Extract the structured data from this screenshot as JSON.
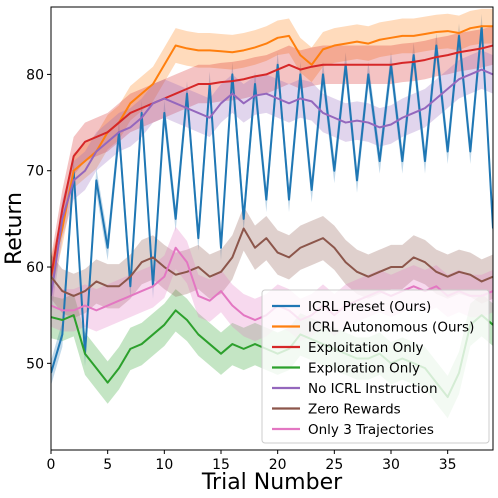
{
  "chart_data": {
    "type": "line",
    "title": "",
    "xlabel": "Trial Number",
    "ylabel": "Return",
    "xlim": [
      0,
      39
    ],
    "ylim": [
      41,
      87
    ],
    "xticks": [
      0,
      5,
      10,
      15,
      20,
      25,
      30,
      35
    ],
    "yticks": [
      50,
      60,
      70,
      80
    ],
    "grid": false,
    "legend_position": "bottom-right",
    "series": [
      {
        "name": "ICRL Preset (Ours)",
        "color": "#1f77b4",
        "band": 1.3,
        "x": [
          0,
          1,
          2,
          3,
          4,
          5,
          6,
          7,
          8,
          9,
          10,
          11,
          12,
          13,
          14,
          15,
          16,
          17,
          18,
          19,
          20,
          21,
          22,
          23,
          24,
          25,
          26,
          27,
          28,
          29,
          30,
          31,
          32,
          33,
          34,
          35,
          36,
          37,
          38,
          39
        ],
        "values": [
          49,
          53,
          70,
          51,
          69,
          62,
          74,
          58,
          76,
          58,
          76,
          65,
          78,
          63,
          79,
          62,
          80,
          65,
          79,
          67,
          81,
          67,
          80,
          68,
          80,
          70,
          81,
          69,
          80,
          71,
          81,
          71,
          82,
          71,
          83,
          72,
          84,
          72,
          85,
          64
        ]
      },
      {
        "name": "ICRL Autonomous (Ours)",
        "color": "#ff7f0e",
        "band": 1.8,
        "x": [
          0,
          1,
          2,
          3,
          4,
          5,
          6,
          7,
          8,
          9,
          10,
          11,
          12,
          13,
          14,
          15,
          16,
          17,
          18,
          19,
          20,
          21,
          22,
          23,
          24,
          25,
          26,
          27,
          28,
          29,
          30,
          31,
          32,
          33,
          34,
          35,
          36,
          37,
          38,
          39
        ],
        "values": [
          59,
          64,
          70,
          71,
          72,
          74,
          75,
          77,
          78,
          79,
          81,
          83,
          82.7,
          82.5,
          82.5,
          82.4,
          82.3,
          82.5,
          82.8,
          83.2,
          83.8,
          84,
          82,
          81,
          82.6,
          83,
          83.2,
          83.4,
          83.2,
          83.6,
          83.8,
          84,
          84,
          84.2,
          84.4,
          84.5,
          84.3,
          84.8,
          85,
          85
        ]
      },
      {
        "name": "Exploitation Only",
        "color": "#d62728",
        "band": 2.0,
        "x": [
          0,
          1,
          2,
          3,
          4,
          5,
          6,
          7,
          8,
          9,
          10,
          11,
          12,
          13,
          14,
          15,
          16,
          17,
          18,
          19,
          20,
          21,
          22,
          23,
          24,
          25,
          26,
          27,
          28,
          29,
          30,
          31,
          32,
          33,
          34,
          35,
          36,
          37,
          38,
          39
        ],
        "values": [
          59,
          66,
          71.5,
          73,
          73.5,
          74,
          75,
          76,
          76.5,
          77,
          77.5,
          78,
          78.5,
          79,
          79,
          79.2,
          79.3,
          79.5,
          79.8,
          80,
          80.5,
          81,
          80.5,
          80.8,
          81,
          81,
          81,
          81,
          81,
          81,
          81,
          81.2,
          81.3,
          81.5,
          81.8,
          82,
          82.3,
          82.5,
          82.7,
          83
        ]
      },
      {
        "name": "Exploration Only",
        "color": "#2ca02c",
        "band": 2.2,
        "x": [
          0,
          1,
          2,
          3,
          4,
          5,
          6,
          7,
          8,
          9,
          10,
          11,
          12,
          13,
          14,
          15,
          16,
          17,
          18,
          19,
          20,
          21,
          22,
          23,
          24,
          25,
          26,
          27,
          28,
          29,
          30,
          31,
          32,
          33,
          34,
          35,
          36,
          37,
          38,
          39
        ],
        "values": [
          54.8,
          54.5,
          55,
          51,
          49.5,
          48,
          49.5,
          51.5,
          52,
          53,
          54,
          55.5,
          54.5,
          53,
          52,
          51,
          52,
          51.5,
          52,
          51.5,
          51,
          51.5,
          53,
          52.5,
          52,
          51.5,
          51,
          50.5,
          50.5,
          51,
          50,
          50.5,
          50,
          49.5,
          48,
          46.5,
          49,
          54,
          55,
          54
        ]
      },
      {
        "name": "No ICRL Instruction",
        "color": "#9467bd",
        "band": 2.0,
        "x": [
          0,
          1,
          2,
          3,
          4,
          5,
          6,
          7,
          8,
          9,
          10,
          11,
          12,
          13,
          14,
          15,
          16,
          17,
          18,
          19,
          20,
          21,
          22,
          23,
          24,
          25,
          26,
          27,
          28,
          29,
          30,
          31,
          32,
          33,
          34,
          35,
          36,
          37,
          38,
          39
        ],
        "values": [
          57,
          65,
          69,
          70,
          72,
          73,
          74,
          74.5,
          75.5,
          77,
          77.5,
          77,
          76.5,
          76,
          75.5,
          77,
          78,
          77,
          77.8,
          78,
          77.5,
          77,
          77.5,
          77.2,
          76,
          75.5,
          75,
          75.2,
          75,
          74.5,
          74.8,
          75.5,
          76,
          76.5,
          77.5,
          78.5,
          79.5,
          80,
          80.5,
          80
        ]
      },
      {
        "name": "Zero Rewards",
        "color": "#8c564b",
        "band": 2.3,
        "x": [
          0,
          1,
          2,
          3,
          4,
          5,
          6,
          7,
          8,
          9,
          10,
          11,
          12,
          13,
          14,
          15,
          16,
          17,
          18,
          19,
          20,
          21,
          22,
          23,
          24,
          25,
          26,
          27,
          28,
          29,
          30,
          31,
          32,
          33,
          34,
          35,
          36,
          37,
          38,
          39
        ],
        "values": [
          59,
          57.5,
          57,
          57.5,
          58.5,
          58,
          58,
          59,
          60.5,
          61,
          60,
          59.2,
          59.5,
          60,
          59,
          59.5,
          61,
          64,
          62,
          63,
          61.5,
          61,
          62,
          62.5,
          63,
          62,
          60.5,
          59.5,
          59,
          59.5,
          60,
          60,
          61,
          60.5,
          59.5,
          59,
          59.5,
          59.2,
          58.5,
          59
        ]
      },
      {
        "name": "Only 3 Trajectories",
        "color": "#e377c2",
        "band": 2.2,
        "x": [
          0,
          1,
          2,
          3,
          4,
          5,
          6,
          7,
          8,
          9,
          10,
          11,
          12,
          13,
          14,
          15,
          16,
          17,
          18,
          19,
          20,
          21,
          22,
          23,
          24,
          25,
          26,
          27,
          28,
          29,
          30,
          31,
          32,
          33,
          34,
          35,
          36,
          37,
          38,
          39
        ],
        "values": [
          56,
          55.5,
          55.5,
          56,
          55.5,
          56,
          56.5,
          57,
          57.5,
          58,
          59,
          62,
          60.5,
          57,
          56.5,
          57.5,
          56,
          55,
          54.5,
          55,
          56,
          55.5,
          54.5,
          55,
          56,
          55,
          56,
          56.5,
          57,
          57.5,
          57,
          57.5,
          58,
          57.5,
          58,
          57,
          57.5,
          57,
          57,
          57.5
        ]
      }
    ]
  }
}
